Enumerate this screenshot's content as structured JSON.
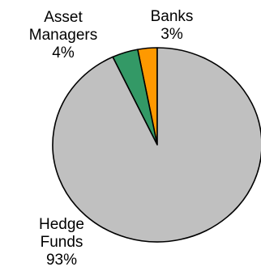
{
  "chart_data": {
    "type": "pie",
    "start": "top",
    "direction": "counterclockwise",
    "slices": [
      {
        "category": [
          "Banks"
        ],
        "value": 3,
        "value_label": "3%",
        "color": "#FF9900"
      },
      {
        "category": [
          "Asset",
          "Managers"
        ],
        "value": 4,
        "value_label": "4%",
        "color": "#339966"
      },
      {
        "category": [
          "Hedge",
          "Funds"
        ],
        "value": 93,
        "value_label": "93%",
        "color": "#C0C0C0"
      }
    ]
  }
}
